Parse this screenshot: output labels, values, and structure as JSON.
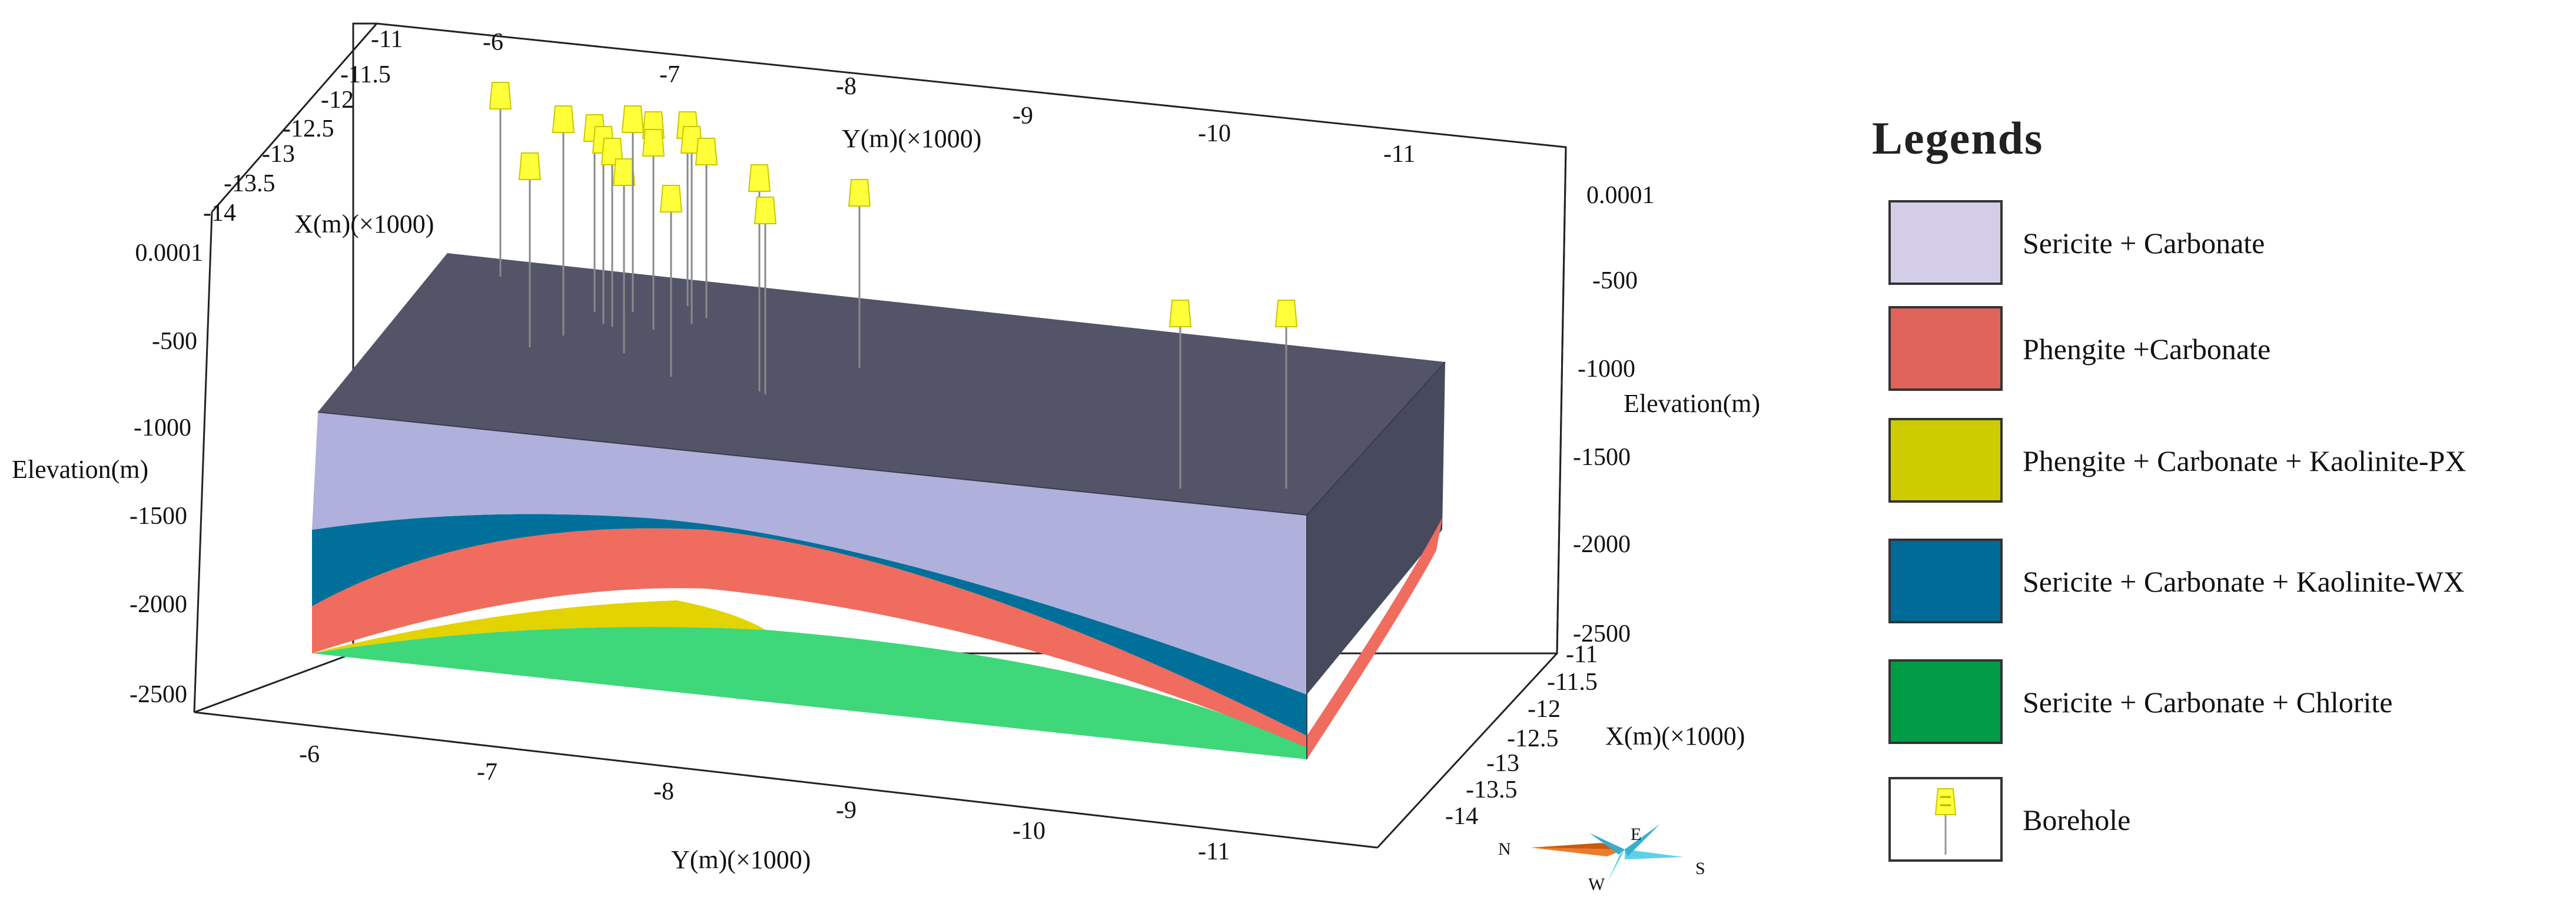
{
  "axes": {
    "y_label": "Y(m)(×1000)",
    "x_label": "X(m)(×1000)",
    "z_label": "Elevation(m)",
    "y_ticks": [
      "-6",
      "-7",
      "-8",
      "-9",
      "-10",
      "-11"
    ],
    "x_ticks": [
      "-11",
      "-11.5",
      "-12",
      "-12.5",
      "-13",
      "-13.5",
      "-14"
    ],
    "z_ticks": [
      "0.0001",
      "-500",
      "-1000",
      "-1500",
      "-2000",
      "-2500"
    ]
  },
  "compass": {
    "n": "N",
    "e": "E",
    "s": "S",
    "w": "W"
  },
  "legend": {
    "title": "Legends",
    "items": [
      {
        "label": "Sericite  + Carbonate",
        "color": "#d3cde8"
      },
      {
        "label": "Phengite +Carbonate",
        "color": "#e0645a"
      },
      {
        "label": "Phengite + Carbonate + Kaolinite-PX",
        "color": "#cccc00"
      },
      {
        "label": "Sericite + Carbonate + Kaolinite-WX",
        "color": "#006b96"
      },
      {
        "label": "Sericite + Carbonate + Chlorite",
        "color": "#009b45"
      },
      {
        "label": "Borehole",
        "color": "#ffff00"
      }
    ]
  },
  "model_colors": {
    "top": "#535468",
    "side": "#474a5d",
    "sericite_carbonate_front": "#b0b0dc",
    "kaolinite_wx": "#00709a",
    "phengite_carbonate": "#f06c5e",
    "kaolinite_px": "#e3d300",
    "chlorite": "#3ed77a",
    "borehole": "#ffff3a"
  }
}
